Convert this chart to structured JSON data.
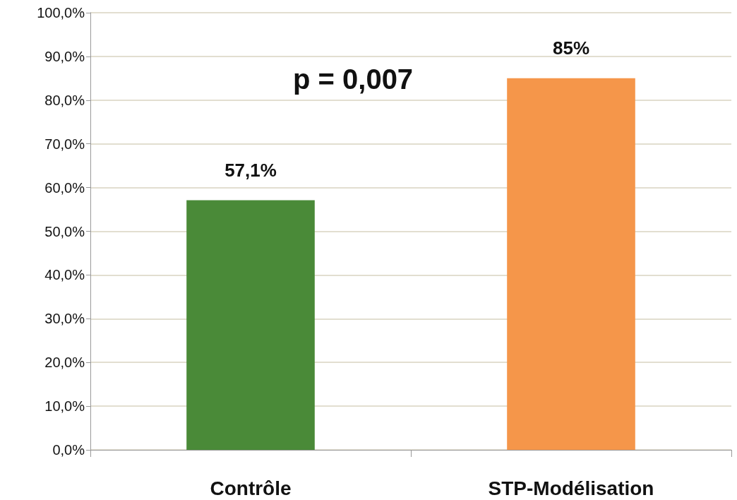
{
  "chart_data": {
    "type": "bar",
    "categories": [
      "Contrôle",
      "STP-Modélisation"
    ],
    "values": [
      57.1,
      85
    ],
    "value_labels": [
      "57,1%",
      "85%"
    ],
    "colors": [
      "#4a8a38",
      "#f5964a"
    ],
    "ylim": [
      0,
      100
    ],
    "yticks": [
      {
        "value": 0,
        "label": "0,0%"
      },
      {
        "value": 10,
        "label": "10,0%"
      },
      {
        "value": 20,
        "label": "20,0%"
      },
      {
        "value": 30,
        "label": "30,0%"
      },
      {
        "value": 40,
        "label": "40,0%"
      },
      {
        "value": 50,
        "label": "50,0%"
      },
      {
        "value": 60,
        "label": "60,0%"
      },
      {
        "value": 70,
        "label": "70,0%"
      },
      {
        "value": 80,
        "label": "80,0%"
      },
      {
        "value": 90,
        "label": "90,0%"
      },
      {
        "value": 100,
        "label": "100,0%"
      }
    ],
    "annotations": [
      "p = 0,007"
    ],
    "grid": "y"
  }
}
